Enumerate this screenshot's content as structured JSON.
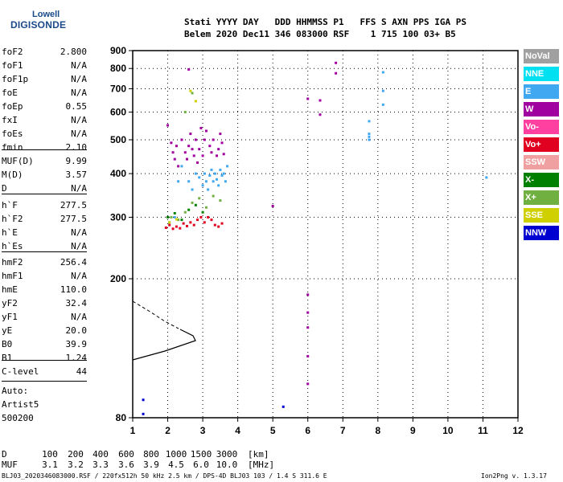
{
  "logo": {
    "top": "Lowell",
    "bottom": "DIGISONDE"
  },
  "header": {
    "line1": "Stati YYYY DAY   DDD HHMMSS P1   FFS S AXN PPS IGA PS",
    "line2": "Belem 2020 Dec11 346 083000 RSF    1 715 100 03+ B5"
  },
  "params_group1": [
    {
      "name": "foF2",
      "value": "2.800"
    },
    {
      "name": "foF1",
      "value": "N/A"
    },
    {
      "name": "foF1p",
      "value": "N/A"
    },
    {
      "name": "foE",
      "value": "N/A"
    },
    {
      "name": "foEp",
      "value": "0.55"
    },
    {
      "name": "fxI",
      "value": "N/A"
    },
    {
      "name": "foEs",
      "value": "N/A"
    },
    {
      "name": "fmin",
      "value": "2.10"
    }
  ],
  "params_group2": [
    {
      "name": "MUF(D)",
      "value": "9.99"
    },
    {
      "name": "M(D)",
      "value": "3.57"
    },
    {
      "name": "D",
      "value": "N/A"
    }
  ],
  "params_group3": [
    {
      "name": "h`F",
      "value": "277.5"
    },
    {
      "name": "h`F2",
      "value": "277.5"
    },
    {
      "name": "h`E",
      "value": "N/A"
    },
    {
      "name": "h`Es",
      "value": "N/A"
    }
  ],
  "params_group4": [
    {
      "name": "hmF2",
      "value": "256.4"
    },
    {
      "name": "hmF1",
      "value": "N/A"
    },
    {
      "name": "hmE",
      "value": "110.0"
    },
    {
      "name": "yF2",
      "value": "32.4"
    },
    {
      "name": "yF1",
      "value": "N/A"
    },
    {
      "name": "yE",
      "value": "20.0"
    },
    {
      "name": "B0",
      "value": "39.9"
    },
    {
      "name": "B1",
      "value": "1.24"
    }
  ],
  "params_group5": [
    {
      "name": "C-level",
      "value": "44"
    }
  ],
  "auto": {
    "label": "Auto:",
    "artist": "Artist5",
    "version": "500200"
  },
  "legend": [
    {
      "label": "NoVal",
      "color": "#a0a0a0"
    },
    {
      "label": "NNE",
      "color": "#00e0f0"
    },
    {
      "label": "E",
      "color": "#40a8f0"
    },
    {
      "label": "W",
      "color": "#a000a0"
    },
    {
      "label": "Vo-",
      "color": "#ff40a0"
    },
    {
      "label": "Vo+",
      "color": "#e00020"
    },
    {
      "label": "SSW",
      "color": "#f0a0a0"
    },
    {
      "label": "X-",
      "color": "#008000"
    },
    {
      "label": "X+",
      "color": "#70b040"
    },
    {
      "label": "SSE",
      "color": "#d0d000"
    },
    {
      "label": "NNW",
      "color": "#0000d0"
    }
  ],
  "muf_table": {
    "row1_label": "D",
    "row1_values": [
      "100",
      "200",
      "400",
      "600",
      "800",
      "1000",
      "1500",
      "3000",
      "[km]"
    ],
    "row2_label": "MUF",
    "row2_values": [
      "3.1",
      "3.2",
      "3.3",
      "3.6",
      "3.9",
      "4.5",
      "6.0",
      "10.0",
      "[MHz]"
    ]
  },
  "footer": {
    "left": "BLJ03_2020346083000.RSF / 220fx512h 50 kHz 2.5 km / DPS-4D BLJ03 103 / 1.4 S 311.6 E",
    "right": "Ion2Png v. 1.3.17"
  },
  "chart_data": {
    "type": "scatter",
    "title": "",
    "xlabel": "",
    "ylabel": "",
    "xlim": [
      1,
      12
    ],
    "ylim": [
      80,
      900
    ],
    "y_scale": "log",
    "x_ticks": [
      1,
      2,
      3,
      4,
      5,
      6,
      7,
      8,
      9,
      10,
      11,
      12
    ],
    "y_ticks": [
      80,
      200,
      300,
      400,
      500,
      600,
      700,
      800,
      900
    ],
    "series": [
      {
        "color_key": "E",
        "points": [
          [
            2.05,
            290
          ],
          [
            2.2,
            300
          ],
          [
            2.3,
            380
          ],
          [
            2.4,
            420
          ],
          [
            2.6,
            380
          ],
          [
            2.7,
            360
          ],
          [
            2.8,
            400
          ],
          [
            2.9,
            390
          ],
          [
            3.0,
            370
          ],
          [
            3.05,
            400
          ],
          [
            3.1,
            380
          ],
          [
            3.15,
            360
          ],
          [
            3.2,
            395
          ],
          [
            3.25,
            410
          ],
          [
            3.3,
            380
          ],
          [
            3.35,
            400
          ],
          [
            3.4,
            385
          ],
          [
            3.45,
            370
          ],
          [
            3.5,
            410
          ],
          [
            3.55,
            395
          ],
          [
            3.6,
            400
          ],
          [
            3.65,
            380
          ],
          [
            3.7,
            420
          ],
          [
            7.75,
            565
          ],
          [
            7.75,
            520
          ],
          [
            7.75,
            510
          ],
          [
            7.75,
            500
          ],
          [
            8.15,
            780
          ],
          [
            8.15,
            690
          ],
          [
            8.15,
            630
          ],
          [
            11.1,
            390
          ]
        ]
      },
      {
        "color_key": "W",
        "points": [
          [
            2.0,
            550
          ],
          [
            2.1,
            490
          ],
          [
            2.15,
            460
          ],
          [
            2.2,
            440
          ],
          [
            2.25,
            480
          ],
          [
            2.3,
            420
          ],
          [
            2.4,
            500
          ],
          [
            2.5,
            460
          ],
          [
            2.55,
            440
          ],
          [
            2.6,
            480
          ],
          [
            2.65,
            520
          ],
          [
            2.7,
            470
          ],
          [
            2.75,
            450
          ],
          [
            2.8,
            500
          ],
          [
            2.85,
            430
          ],
          [
            2.9,
            470
          ],
          [
            2.95,
            540
          ],
          [
            3.0,
            450
          ],
          [
            3.05,
            500
          ],
          [
            3.1,
            530
          ],
          [
            3.2,
            480
          ],
          [
            3.25,
            460
          ],
          [
            3.3,
            500
          ],
          [
            3.4,
            450
          ],
          [
            3.45,
            470
          ],
          [
            3.5,
            520
          ],
          [
            3.55,
            490
          ],
          [
            3.6,
            455
          ],
          [
            5.0,
            323
          ],
          [
            6.0,
            655
          ],
          [
            6.35,
            648
          ],
          [
            6.35,
            590
          ],
          [
            6.8,
            830
          ],
          [
            6.8,
            775
          ],
          [
            6.0,
            180
          ],
          [
            6.0,
            160
          ],
          [
            6.0,
            145
          ],
          [
            6.0,
            120
          ],
          [
            6.0,
            100
          ],
          [
            2.6,
            795
          ]
        ]
      },
      {
        "color_key": "Vo+",
        "points": [
          [
            1.95,
            280
          ],
          [
            2.05,
            285
          ],
          [
            2.15,
            278
          ],
          [
            2.25,
            282
          ],
          [
            2.35,
            279
          ],
          [
            2.45,
            288
          ],
          [
            2.55,
            283
          ],
          [
            2.65,
            290
          ],
          [
            2.75,
            285
          ],
          [
            2.85,
            295
          ],
          [
            2.95,
            300
          ],
          [
            3.05,
            290
          ],
          [
            3.15,
            300
          ],
          [
            3.25,
            295
          ],
          [
            3.35,
            285
          ],
          [
            3.45,
            282
          ],
          [
            3.55,
            288
          ]
        ]
      },
      {
        "color_key": "X+",
        "points": [
          [
            2.1,
            300
          ],
          [
            2.3,
            295
          ],
          [
            2.5,
            310
          ],
          [
            2.7,
            330
          ],
          [
            2.9,
            340
          ],
          [
            3.1,
            320
          ],
          [
            3.3,
            345
          ],
          [
            3.5,
            335
          ],
          [
            2.5,
            600
          ],
          [
            2.7,
            680
          ]
        ]
      },
      {
        "color_key": "X-",
        "points": [
          [
            2.0,
            300
          ],
          [
            2.2,
            308
          ],
          [
            2.4,
            295
          ],
          [
            2.6,
            315
          ],
          [
            2.8,
            325
          ],
          [
            3.0,
            310
          ]
        ]
      },
      {
        "color_key": "SSE",
        "points": [
          [
            2.05,
            290
          ],
          [
            2.25,
            296
          ],
          [
            2.65,
            690
          ],
          [
            2.8,
            645
          ]
        ]
      },
      {
        "color_key": "NNW",
        "points": [
          [
            1.3,
            90
          ],
          [
            1.3,
            82
          ],
          [
            5.3,
            86
          ]
        ]
      }
    ]
  }
}
